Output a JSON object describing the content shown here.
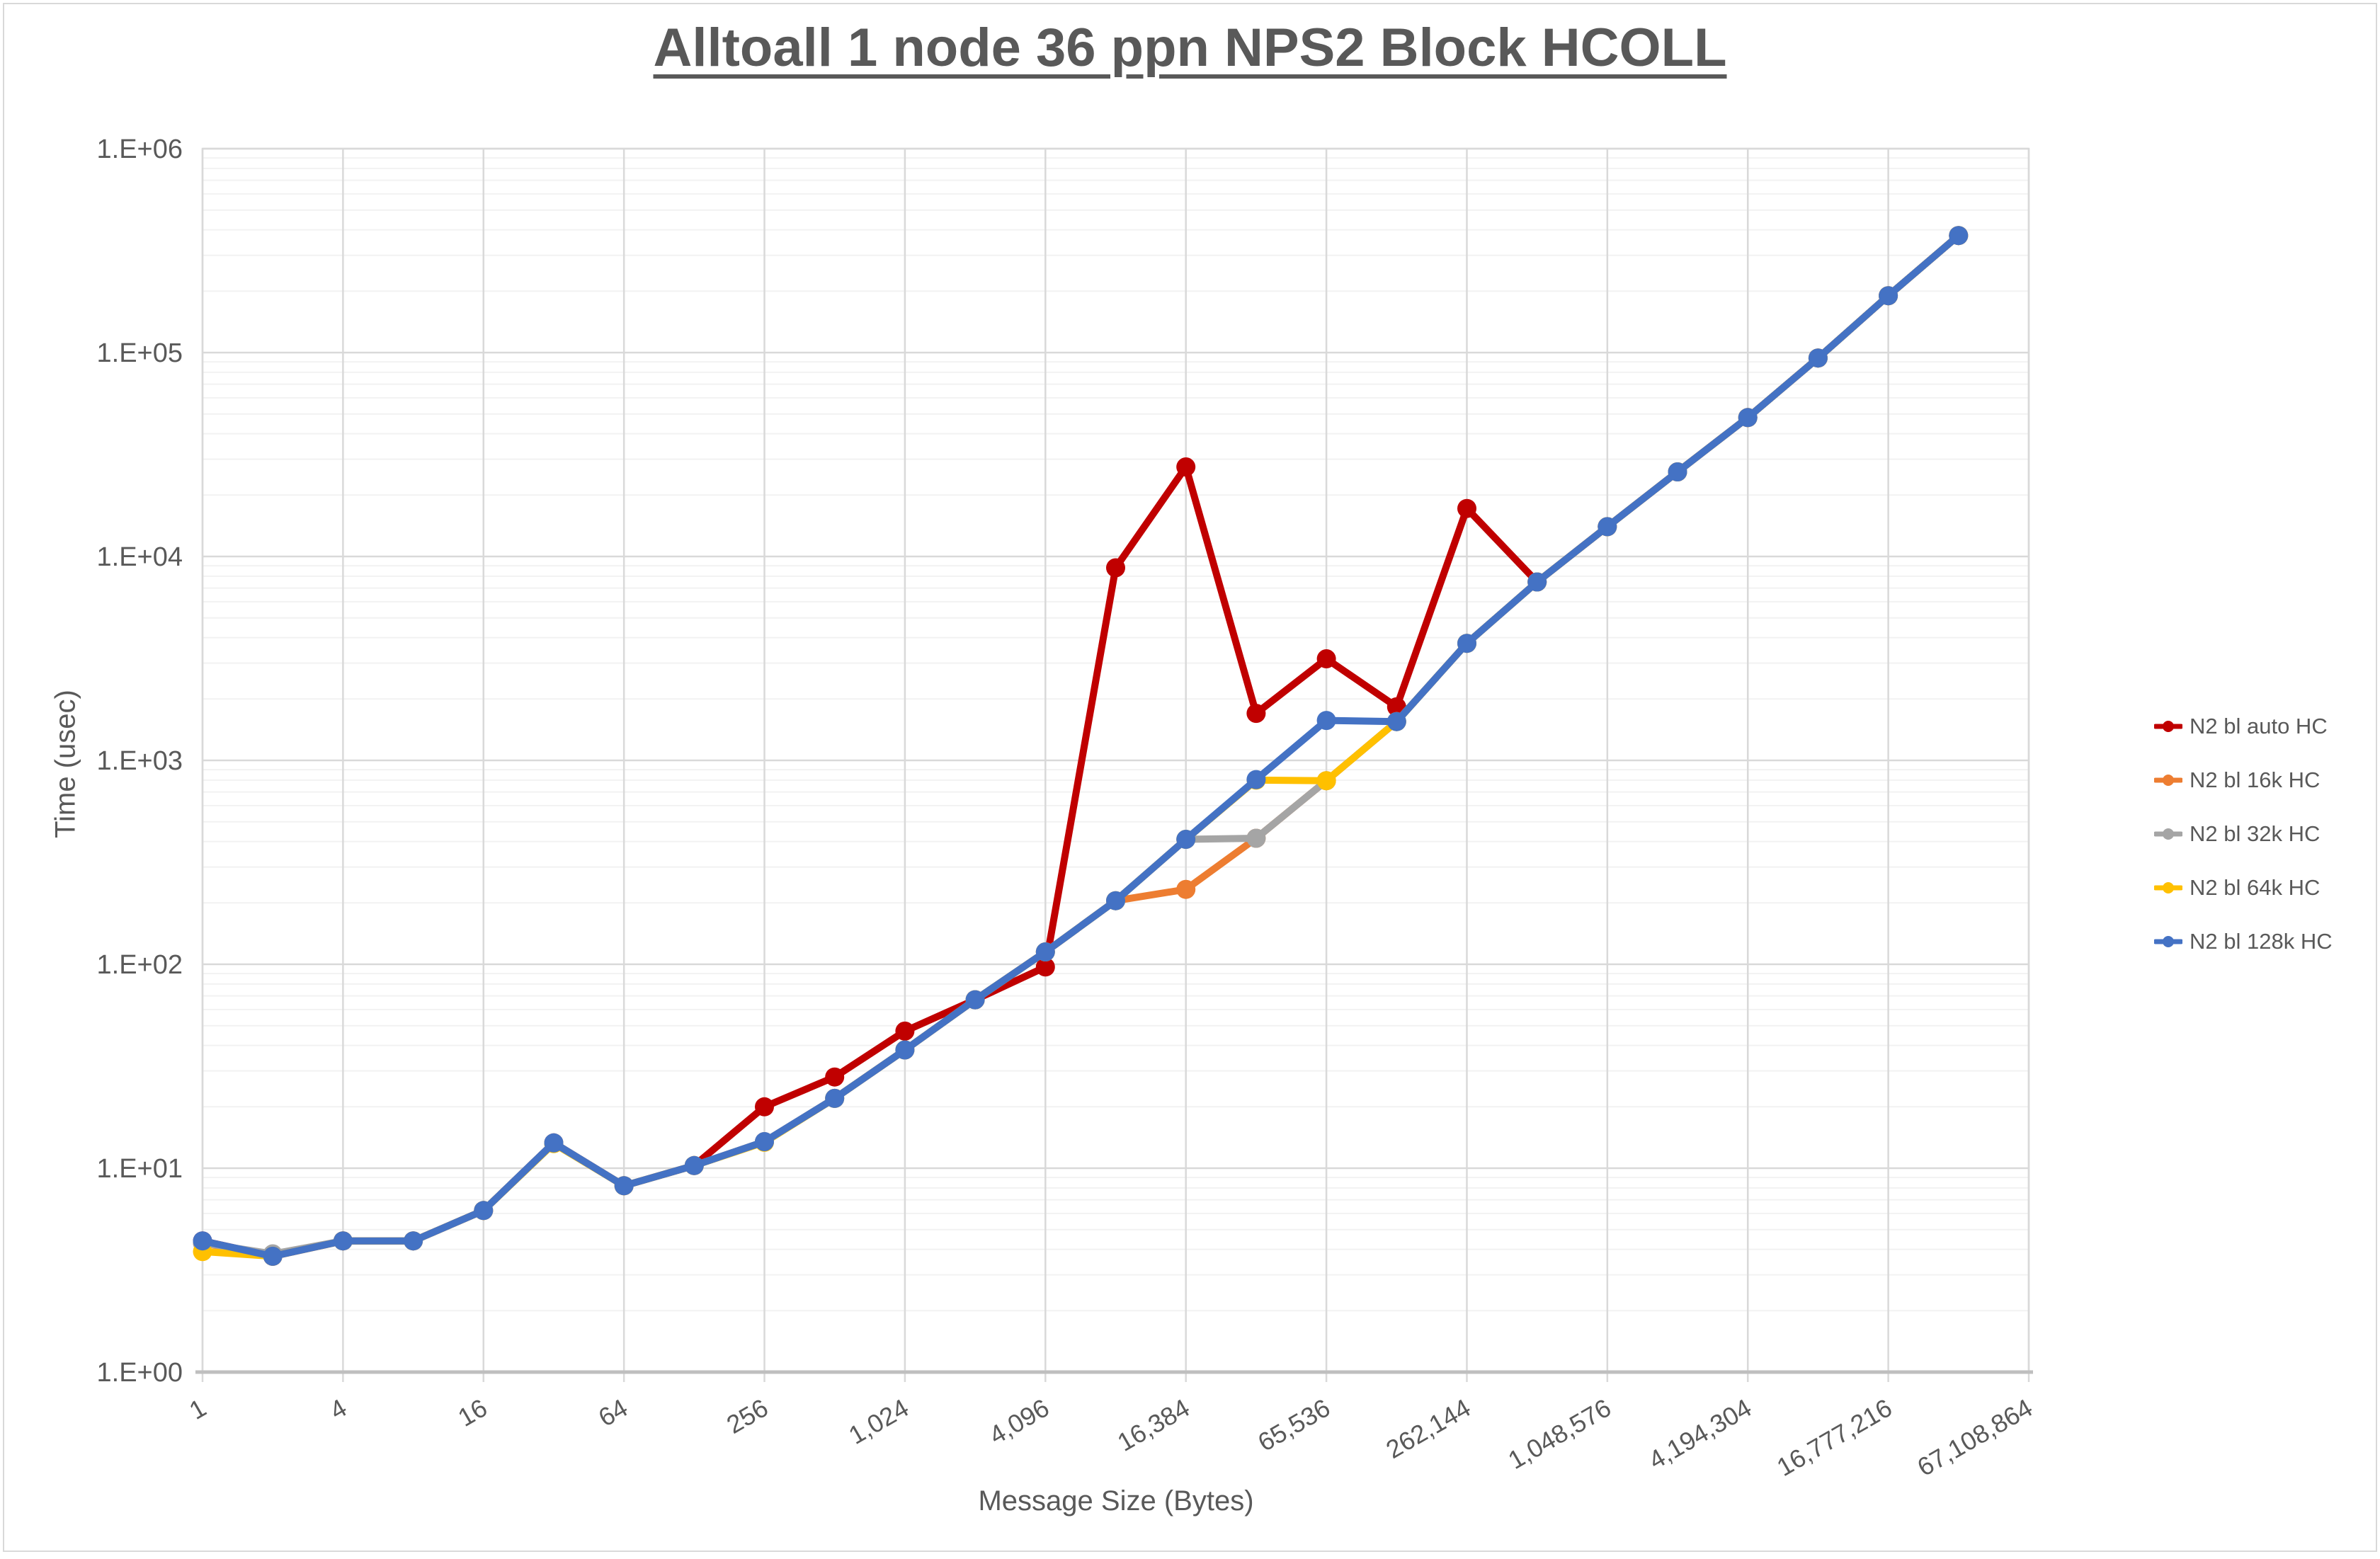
{
  "title": "Alltoall 1 node 36 ppn NPS2 Block HCOLL",
  "y_axis": {
    "title": "Time (usec)",
    "tick_labels": [
      "1.E+00",
      "1.E+01",
      "1.E+02",
      "1.E+03",
      "1.E+04",
      "1.E+05",
      "1.E+06"
    ]
  },
  "x_axis": {
    "title": "Message Size (Bytes)",
    "tick_labels": [
      "1",
      "4",
      "16",
      "64",
      "256",
      "1,024",
      "4,096",
      "16,384",
      "65,536",
      "262,144",
      "1,048,576",
      "4,194,304",
      "16,777,216",
      "67,108,864"
    ]
  },
  "colors": {
    "text": "#595959",
    "gridline_major": "#d9d9d9",
    "gridline_minor": "#f2f2f2",
    "axis_line": "#bfbfbf",
    "background": "#ffffff"
  },
  "chart_data": {
    "type": "line",
    "title": "Alltoall 1 node 36 ppn NPS2 Block HCOLL",
    "xlabel": "Message Size (Bytes)",
    "ylabel": "Time (usec)",
    "x_scale": "log-categories-powers-of-2",
    "y_scale": "log10",
    "ylim": [
      1,
      1000000
    ],
    "x_axis_last_category": 67108864,
    "grid": "major-and-minor",
    "legend_position": "right",
    "categories": [
      1,
      2,
      4,
      8,
      16,
      32,
      64,
      128,
      256,
      512,
      1024,
      2048,
      4096,
      8192,
      16384,
      32768,
      65536,
      131072,
      262144,
      524288,
      1048576,
      2097152,
      4194304,
      8388608,
      16777216,
      33554432
    ],
    "series": [
      {
        "name": "N2 bl auto HC",
        "color": "#c00000",
        "values": [
          4.4,
          3.7,
          4.4,
          4.4,
          6.2,
          13.3,
          8.2,
          10.3,
          20,
          28,
          47,
          67,
          97,
          8800,
          27500,
          1700,
          3150,
          1830,
          17200,
          7500,
          14000,
          26000,
          48000,
          94000,
          190000,
          375000
        ]
      },
      {
        "name": "N2 bl 16k HC",
        "color": "#ed7d31",
        "values": [
          4.3,
          3.7,
          4.4,
          4.4,
          6.2,
          13.3,
          8.2,
          10.3,
          13.5,
          22,
          38,
          67,
          115,
          205,
          233,
          415,
          795,
          1550,
          3750,
          7500,
          14000,
          26000,
          48000,
          94000,
          190000,
          375000
        ]
      },
      {
        "name": "N2 bl 32k HC",
        "color": "#a5a5a5",
        "values": [
          4.3,
          3.8,
          4.4,
          4.4,
          6.2,
          13.3,
          8.2,
          10.3,
          13.5,
          22,
          38,
          67,
          115,
          205,
          410,
          415,
          795,
          1550,
          3750,
          7500,
          14000,
          26000,
          48000,
          94000,
          190000,
          375000
        ]
      },
      {
        "name": "N2 bl 64k HC",
        "color": "#ffc000",
        "values": [
          3.9,
          3.7,
          4.4,
          4.4,
          6.2,
          13.2,
          8.2,
          10.3,
          13.4,
          22,
          38,
          67,
          115,
          205,
          410,
          800,
          795,
          1550,
          3750,
          7500,
          14000,
          26000,
          48000,
          94000,
          190000,
          375000
        ]
      },
      {
        "name": "N2 bl 128k HC",
        "color": "#4472c4",
        "values": [
          4.4,
          3.7,
          4.4,
          4.4,
          6.2,
          13.3,
          8.2,
          10.3,
          13.5,
          22,
          38,
          67,
          115,
          205,
          410,
          805,
          1570,
          1550,
          3750,
          7500,
          14000,
          26000,
          48000,
          94000,
          190000,
          375000
        ]
      }
    ]
  }
}
